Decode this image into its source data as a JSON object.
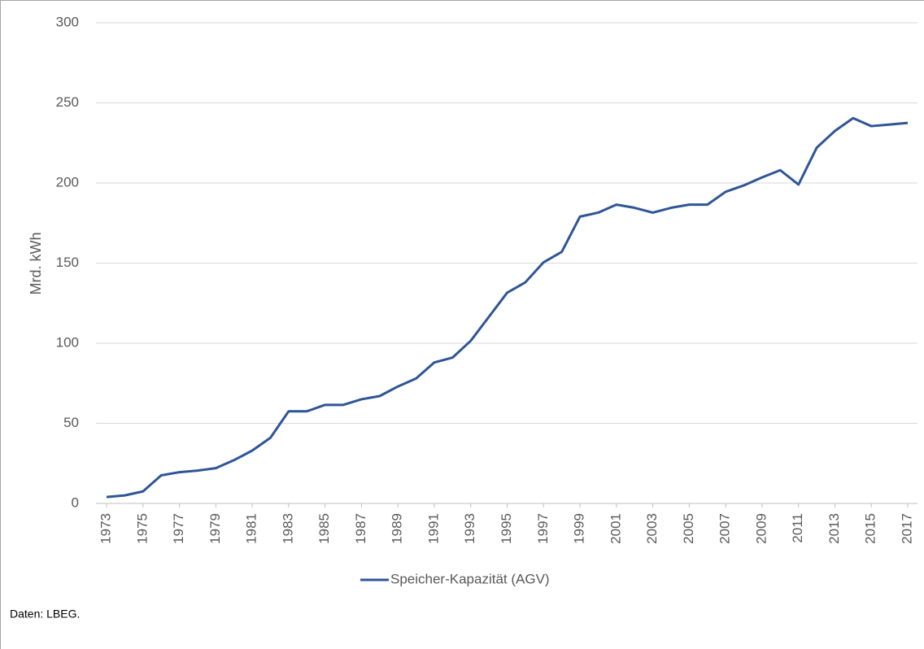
{
  "chart_data": {
    "type": "line",
    "x": [
      1973,
      1974,
      1975,
      1976,
      1977,
      1978,
      1979,
      1980,
      1981,
      1982,
      1983,
      1984,
      1985,
      1986,
      1987,
      1988,
      1989,
      1990,
      1991,
      1992,
      1993,
      1994,
      1995,
      1996,
      1997,
      1998,
      1999,
      2000,
      2001,
      2002,
      2003,
      2004,
      2005,
      2006,
      2007,
      2008,
      2009,
      2010,
      2011,
      2012,
      2013,
      2014,
      2015,
      2016,
      2017
    ],
    "series": [
      {
        "name": "Speicher-Kapazität (AGV)",
        "color": "#2f5597",
        "values": [
          4,
          5,
          7.5,
          17.5,
          19.5,
          20.5,
          22,
          27,
          33,
          41,
          57.5,
          57.5,
          61.5,
          61.5,
          65,
          67,
          73,
          78,
          88,
          91,
          101.5,
          116.5,
          131.5,
          138,
          150.5,
          157,
          179,
          181.5,
          186.5,
          184.5,
          181.5,
          184.5,
          186.5,
          186.5,
          194.5,
          198.5,
          203.5,
          208,
          199,
          222,
          232.5,
          240.5,
          235.5,
          236.5,
          237.5
        ]
      }
    ],
    "xlim": [
      1973,
      2017
    ],
    "xticks": [
      1973,
      1975,
      1977,
      1979,
      1981,
      1983,
      1985,
      1987,
      1989,
      1991,
      1993,
      1995,
      1997,
      1999,
      2001,
      2003,
      2005,
      2007,
      2009,
      2011,
      2013,
      2015,
      2017
    ],
    "ylim": [
      0,
      300
    ],
    "yticks": [
      0,
      50,
      100,
      150,
      200,
      250,
      300
    ],
    "ylabel": "Mrd. kWh",
    "grid": true,
    "legend": "bottom",
    "source": "Daten: LBEG."
  }
}
